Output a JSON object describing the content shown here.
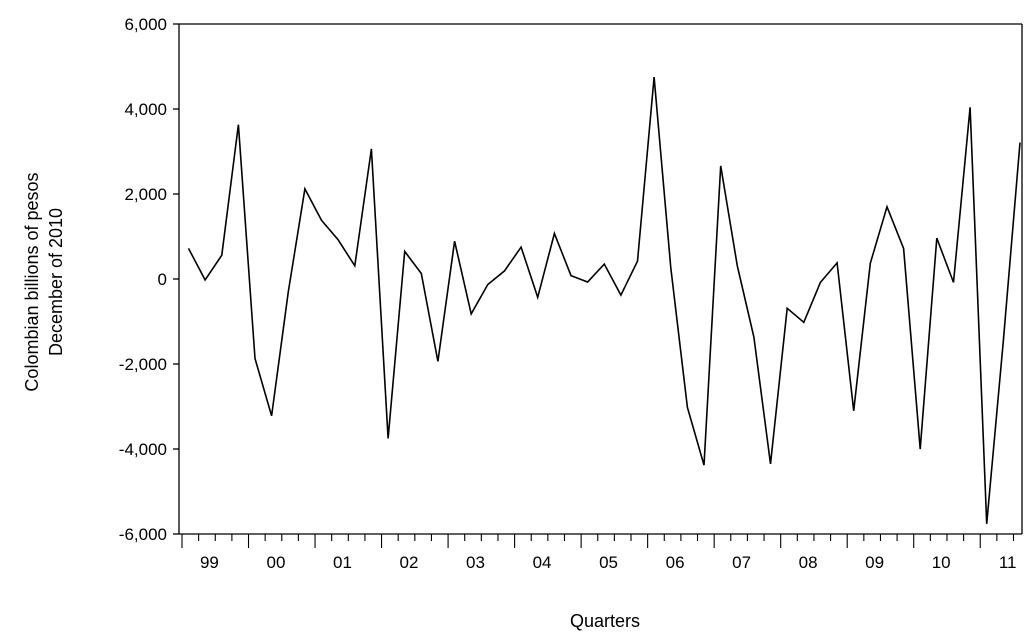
{
  "chart_data": {
    "type": "line",
    "title": "",
    "xlabel": "Quarters",
    "ylabel_lines": [
      "Colombian billions of pesos",
      "December of 2010"
    ],
    "ylim": [
      -6000,
      6000
    ],
    "yticks": [
      6000,
      4000,
      2000,
      0,
      -2000,
      -4000,
      -6000
    ],
    "ytick_labels": [
      "6,000",
      "4,000",
      "2,000",
      "0",
      "-2,000",
      "-4,000",
      "-6,000"
    ],
    "year_labels": [
      "99",
      "00",
      "01",
      "02",
      "03",
      "04",
      "05",
      "06",
      "07",
      "08",
      "09",
      "10",
      "11"
    ],
    "grid": false,
    "line_color": "#000000",
    "series": [
      {
        "values": [
          720,
          -20,
          560,
          3630,
          -1870,
          -3220,
          -300,
          2120,
          1380,
          920,
          310,
          3060,
          -3750,
          650,
          130,
          -1940,
          890,
          -820,
          -130,
          190,
          750,
          -430,
          1070,
          80,
          -70,
          350,
          -380,
          420,
          4750,
          260,
          -3020,
          -4380,
          2660,
          310,
          -1370,
          -4350,
          -690,
          -1020,
          -80,
          380,
          -3100,
          370,
          1700,
          720,
          -4000,
          960,
          -80,
          4040,
          -5760,
          -1440,
          3210
        ]
      }
    ]
  }
}
